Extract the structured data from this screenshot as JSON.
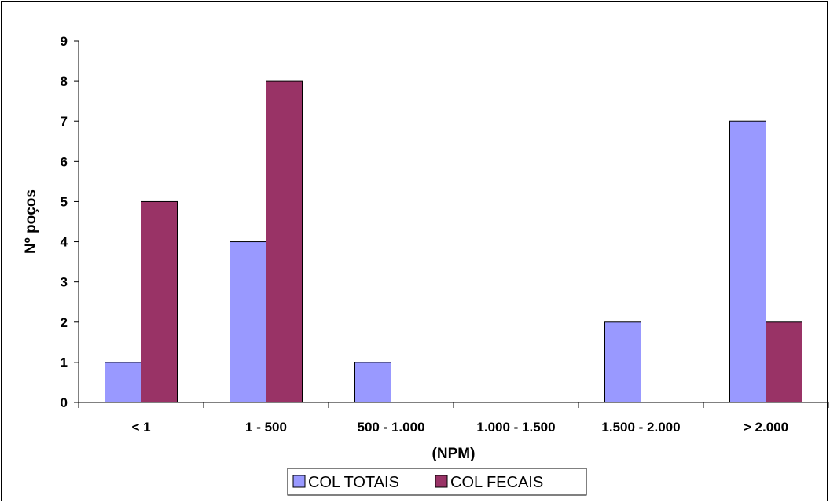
{
  "chart_data": {
    "type": "bar",
    "title": "",
    "xlabel": "(NPM)",
    "ylabel": "Nº poços",
    "categories": [
      "< 1",
      "1 - 500",
      "500 - 1.000",
      "1.000 - 1.500",
      "1.500 - 2.000",
      "> 2.000"
    ],
    "series": [
      {
        "name": "COL TOTAIS",
        "color": "#9999ff",
        "values": [
          1,
          4,
          1,
          0,
          2,
          7
        ]
      },
      {
        "name": "COL FECAIS",
        "color": "#993366",
        "values": [
          5,
          8,
          0,
          0,
          0,
          2
        ]
      }
    ],
    "ylim": [
      0,
      9
    ],
    "yticks": [
      0,
      1,
      2,
      3,
      4,
      5,
      6,
      7,
      8,
      9
    ],
    "grid": false,
    "legend_position": "bottom"
  }
}
